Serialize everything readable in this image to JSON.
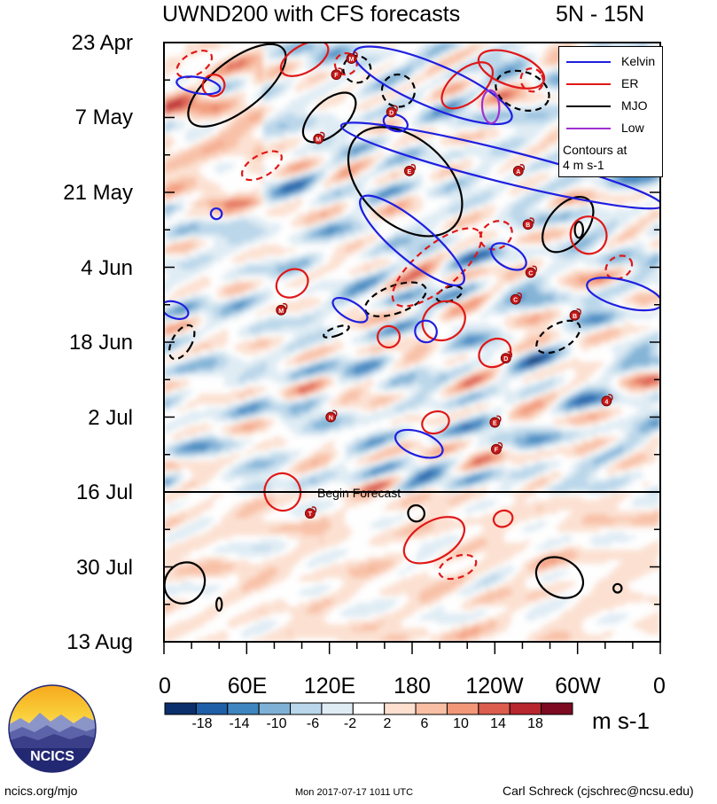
{
  "title_left": "UWND200 with CFS forecasts",
  "title_right": "5N - 15N",
  "chart_data": {
    "type": "heatmap",
    "variable": "UWND200",
    "title": "UWND200 with CFS forecasts",
    "region": "5N - 15N",
    "x_ticks": [
      "0",
      "60E",
      "120E",
      "180",
      "120W",
      "60W",
      "0"
    ],
    "x_range_deg": [
      0,
      360
    ],
    "y_ticks": [
      "23 Apr",
      "7 May",
      "21 May",
      "4 Jun",
      "18 Jun",
      "2 Jul",
      "16 Jul",
      "30 Jul",
      "13 Aug"
    ],
    "y_range_days": [
      0,
      112
    ],
    "forecast_start": "16 Jul",
    "forecast_label": "Begin Forecast",
    "units": "m s-1",
    "colorbar": {
      "labels": [
        "-18",
        "-14",
        "-10",
        "-6",
        "-2",
        "2",
        "6",
        "10",
        "14",
        "18"
      ],
      "colors": [
        "#0a2f6b",
        "#1f5fa8",
        "#3f85c0",
        "#7fb1d6",
        "#b9d6ea",
        "#dfecf4",
        "#ffffff",
        "#fde0d0",
        "#f9bfa4",
        "#f29878",
        "#dc5c4e",
        "#b8262e",
        "#7d0a20"
      ]
    },
    "legend": [
      {
        "label": "Kelvin",
        "color": "#1f1fe0"
      },
      {
        "label": "ER",
        "color": "#e01818"
      },
      {
        "label": "MJO",
        "color": "#000000"
      },
      {
        "label": "Low",
        "color": "#a030d0"
      }
    ],
    "legend_note": [
      "Contours at",
      "4 m s-1"
    ],
    "storm_markers": [
      "M",
      "F",
      "D",
      "E",
      "A",
      "M",
      "B",
      "M",
      "C",
      "C",
      "B",
      "D",
      "N",
      "4",
      "E",
      "F",
      "T"
    ],
    "contours": [
      {
        "type": "MJO",
        "style": "solid",
        "lon": 53,
        "day": 8,
        "rlon": 18,
        "rday": 11,
        "angle": 52
      },
      {
        "type": "MJO",
        "style": "solid",
        "lon": 120,
        "day": 14,
        "rlon": 12,
        "rday": 6,
        "angle": 48
      },
      {
        "type": "MJO",
        "style": "solid",
        "lon": 175,
        "day": 26,
        "rlon": 48,
        "rday": 8,
        "angle": 42
      },
      {
        "type": "MJO",
        "style": "solid",
        "lon": 293,
        "day": 34,
        "rlon": 14,
        "rday": 6,
        "angle": 40
      },
      {
        "type": "MJO",
        "style": "solid",
        "lon": 301,
        "day": 35,
        "rlon": 3,
        "rday": 1.5,
        "angle": 0
      },
      {
        "type": "MJO",
        "style": "dashed",
        "lon": 260,
        "day": 9,
        "rlon": 20,
        "rday": 3.5,
        "angle": 20
      },
      {
        "type": "MJO",
        "style": "dashed",
        "lon": 170,
        "day": 9,
        "rlon": 12,
        "rday": 3,
        "angle": 30
      },
      {
        "type": "MJO",
        "style": "dashed",
        "lon": 140,
        "day": 5,
        "rlon": 10,
        "rday": 2.5,
        "angle": 20
      },
      {
        "type": "MJO",
        "style": "dashed",
        "lon": 168,
        "day": 48,
        "rlon": 10,
        "rday": 6,
        "angle": 70
      },
      {
        "type": "MJO",
        "style": "dashed",
        "lon": 207,
        "day": 47,
        "rlon": 5,
        "rday": 2.5,
        "angle": 70
      },
      {
        "type": "MJO",
        "style": "dashed",
        "lon": 125,
        "day": 54,
        "rlon": 3,
        "rday": 2.5,
        "angle": 70
      },
      {
        "type": "MJO",
        "style": "dashed",
        "lon": 13,
        "day": 56,
        "rlon": 7,
        "rday": 3.5,
        "angle": 30
      },
      {
        "type": "MJO",
        "style": "dashed",
        "lon": 286,
        "day": 55,
        "rlon": 9,
        "rday": 4.5,
        "angle": 60
      },
      {
        "type": "MJO",
        "style": "solid",
        "lon": 183,
        "day": 88,
        "rlon": 6,
        "rday": 1.5,
        "angle": 35
      },
      {
        "type": "MJO",
        "style": "solid",
        "lon": 15,
        "day": 101,
        "rlon": 14,
        "rday": 4,
        "angle": 40
      },
      {
        "type": "MJO",
        "style": "solid",
        "lon": 40,
        "day": 105,
        "rlon": 2,
        "rday": 1.2,
        "angle": 0
      },
      {
        "type": "MJO",
        "style": "solid",
        "lon": 287,
        "day": 100,
        "rlon": 18,
        "rday": 3.5,
        "angle": 30
      },
      {
        "type": "MJO",
        "style": "solid",
        "lon": 329,
        "day": 102,
        "rlon": 3,
        "rday": 0.8,
        "angle": 0
      },
      {
        "type": "ER",
        "style": "solid",
        "lon": 102,
        "day": 3,
        "rlon": 19,
        "rday": 2.5,
        "angle": -30
      },
      {
        "type": "ER",
        "style": "solid",
        "lon": 36,
        "day": 8,
        "rlon": 8,
        "rday": 2,
        "angle": -30
      },
      {
        "type": "ER",
        "style": "dashed",
        "lon": 22,
        "day": 4,
        "rlon": 14,
        "rday": 2,
        "angle": -30
      },
      {
        "type": "ER",
        "style": "solid",
        "lon": 220,
        "day": 8,
        "rlon": 22,
        "rday": 3,
        "angle": -40
      },
      {
        "type": "ER",
        "style": "solid",
        "lon": 252,
        "day": 5,
        "rlon": 25,
        "rday": 3,
        "angle": 20
      },
      {
        "type": "ER",
        "style": "dashed",
        "lon": 132,
        "day": 4,
        "rlon": 8,
        "rday": 2,
        "angle": -20
      },
      {
        "type": "ER",
        "style": "dashed",
        "lon": 71,
        "day": 23,
        "rlon": 16,
        "rday": 2,
        "angle": -30
      },
      {
        "type": "ER",
        "style": "dashed",
        "lon": 267,
        "day": 7,
        "rlon": 8,
        "rday": 2.2,
        "angle": -30
      },
      {
        "type": "ER",
        "style": "dashed",
        "lon": 198,
        "day": 42,
        "rlon": 40,
        "rday": 4,
        "angle": -40
      },
      {
        "type": "ER",
        "style": "solid",
        "lon": 93,
        "day": 45,
        "rlon": 12,
        "rday": 2.5,
        "angle": -30
      },
      {
        "type": "ER",
        "style": "dashed",
        "lon": 241,
        "day": 36,
        "rlon": 12,
        "rday": 2.5,
        "angle": -30
      },
      {
        "type": "ER",
        "style": "solid",
        "lon": 308,
        "day": 36,
        "rlon": 13,
        "rday": 3.5,
        "angle": -20
      },
      {
        "type": "ER",
        "style": "dashed",
        "lon": 330,
        "day": 42,
        "rlon": 10,
        "rday": 2,
        "angle": -30
      },
      {
        "type": "ER",
        "style": "solid",
        "lon": 203,
        "day": 52,
        "rlon": 16,
        "rday": 3.5,
        "angle": -30
      },
      {
        "type": "ER",
        "style": "solid",
        "lon": 240,
        "day": 58,
        "rlon": 12,
        "rday": 2.5,
        "angle": -30
      },
      {
        "type": "ER",
        "style": "solid",
        "lon": 197,
        "day": 71,
        "rlon": 10,
        "rday": 2,
        "angle": -20
      },
      {
        "type": "ER",
        "style": "solid",
        "lon": 86,
        "day": 84,
        "rlon": 13,
        "rday": 3.5,
        "angle": -20
      },
      {
        "type": "ER",
        "style": "solid",
        "lon": 196,
        "day": 93,
        "rlon": 24,
        "rday": 3.5,
        "angle": -30
      },
      {
        "type": "ER",
        "style": "dashed",
        "lon": 213,
        "day": 98,
        "rlon": 14,
        "rday": 2,
        "angle": -20
      },
      {
        "type": "ER",
        "style": "solid",
        "lon": 246,
        "day": 89,
        "rlon": 7,
        "rday": 1.5,
        "angle": -20
      },
      {
        "type": "ER",
        "style": "solid",
        "lon": 163,
        "day": 55,
        "rlon": 8,
        "rday": 2,
        "angle": 0
      },
      {
        "type": "ER",
        "style": "solid",
        "lon": 340,
        "day": 17,
        "rlon": 8,
        "rday": 2,
        "angle": -20
      },
      {
        "type": "Kelvin",
        "style": "solid",
        "lon": 195,
        "day": 8,
        "rlon": 62,
        "rday": 4,
        "angle": 23
      },
      {
        "type": "Kelvin",
        "style": "solid",
        "lon": 245,
        "day": 23,
        "rlon": 120,
        "rday": 3,
        "angle": 14
      },
      {
        "type": "Kelvin",
        "style": "solid",
        "lon": 180,
        "day": 37,
        "rlon": 48,
        "rday": 3.5,
        "angle": 40
      },
      {
        "type": "Kelvin",
        "style": "solid",
        "lon": 250,
        "day": 40,
        "rlon": 14,
        "rday": 2,
        "angle": 30
      },
      {
        "type": "Kelvin",
        "style": "solid",
        "lon": 334,
        "day": 47,
        "rlon": 28,
        "rday": 2.5,
        "angle": 15
      },
      {
        "type": "Kelvin",
        "style": "solid",
        "lon": 190,
        "day": 54,
        "rlon": 8,
        "rday": 2,
        "angle": 45
      },
      {
        "type": "Kelvin",
        "style": "solid",
        "lon": 135,
        "day": 50,
        "rlon": 14,
        "rday": 1.6,
        "angle": 30
      },
      {
        "type": "Kelvin",
        "style": "solid",
        "lon": 168,
        "day": 15,
        "rlon": 9,
        "rday": 1.5,
        "angle": 20
      },
      {
        "type": "Kelvin",
        "style": "solid",
        "lon": 185,
        "day": 75,
        "rlon": 18,
        "rday": 2.2,
        "angle": 20
      },
      {
        "type": "Kelvin",
        "style": "solid",
        "lon": 25,
        "day": 8,
        "rlon": 16,
        "rday": 1.5,
        "angle": 10
      },
      {
        "type": "Kelvin",
        "style": "solid",
        "lon": 8,
        "day": 50,
        "rlon": 10,
        "rday": 1.5,
        "angle": 20
      },
      {
        "type": "Kelvin",
        "style": "solid",
        "lon": 38,
        "day": 32,
        "rlon": 4,
        "rday": 1,
        "angle": 20
      },
      {
        "type": "Low",
        "style": "solid",
        "lon": 237,
        "day": 12,
        "rlon": 12,
        "rday": 1.6,
        "angle": 87
      }
    ]
  },
  "footer": {
    "left": "ncics.org/mjo",
    "center": "Mon 2017-07-17 1011 UTC",
    "right": "Carl Schreck (cjschrec@ncsu.edu)"
  },
  "logo": {
    "text": "NCICS"
  }
}
